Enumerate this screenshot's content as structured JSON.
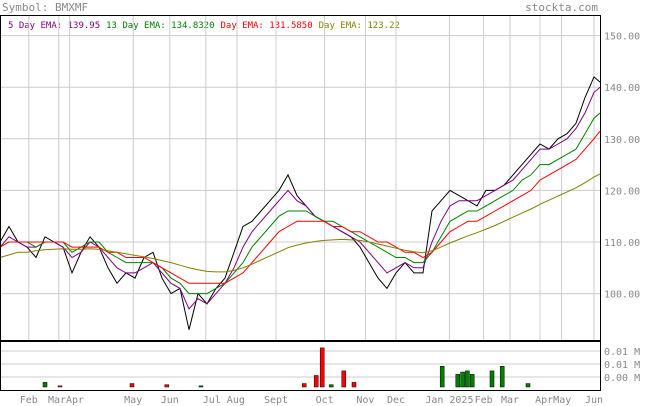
{
  "header": {
    "symbol_label": "Symbol: BMXMF",
    "site": "stockta.com"
  },
  "chart_data": {
    "type": "line",
    "legend": [
      {
        "name": "5 Day EMA: 139.95",
        "color": "#800080"
      },
      {
        "name": "13 Day EMA: 134.8320",
        "color": "#008000"
      },
      {
        "name": "Day EMA: 131.5850",
        "color": "#ff0000"
      },
      {
        "name": "Day EMA: 123.22",
        "color": "#808000"
      }
    ],
    "ylim": [
      91,
      154
    ],
    "y_ticks": [
      100,
      110,
      120,
      130,
      140,
      150
    ],
    "y_tick_labels": [
      "100.00",
      "110.00",
      "120.00",
      "130.00",
      "140.00",
      "150.00"
    ],
    "x_labels": [
      {
        "label": "Feb",
        "t": 0.048
      },
      {
        "label": "MarApr",
        "t": 0.11
      },
      {
        "label": "May",
        "t": 0.222
      },
      {
        "label": "Jun",
        "t": 0.283
      },
      {
        "label": "Jul Aug",
        "t": 0.373
      },
      {
        "label": "Sept",
        "t": 0.46
      },
      {
        "label": "Oct",
        "t": 0.541
      },
      {
        "label": "Nov",
        "t": 0.609
      },
      {
        "label": "Dec",
        "t": 0.66
      },
      {
        "label": "Jan 2025",
        "t": 0.749
      },
      {
        "label": "Feb",
        "t": 0.806
      },
      {
        "label": "Mar",
        "t": 0.85
      },
      {
        "label": "AprMay",
        "t": 0.922
      },
      {
        "label": "Jun",
        "t": 0.99
      }
    ],
    "vgrid_t": [
      0.048,
      0.098,
      0.116,
      0.222,
      0.283,
      0.343,
      0.395,
      0.46,
      0.541,
      0.609,
      0.66,
      0.749,
      0.806,
      0.85,
      0.9,
      0.936,
      0.99
    ],
    "series": [
      {
        "color": "#000000",
        "x": [
          0,
          0.015,
          0.03,
          0.045,
          0.06,
          0.075,
          0.09,
          0.105,
          0.12,
          0.135,
          0.15,
          0.165,
          0.18,
          0.195,
          0.21,
          0.225,
          0.24,
          0.255,
          0.27,
          0.285,
          0.3,
          0.315,
          0.33,
          0.345,
          0.36,
          0.375,
          0.39,
          0.405,
          0.42,
          0.435,
          0.45,
          0.465,
          0.48,
          0.495,
          0.51,
          0.525,
          0.54,
          0.555,
          0.57,
          0.585,
          0.6,
          0.615,
          0.63,
          0.645,
          0.66,
          0.675,
          0.69,
          0.705,
          0.72,
          0.735,
          0.75,
          0.765,
          0.78,
          0.795,
          0.81,
          0.825,
          0.84,
          0.855,
          0.87,
          0.885,
          0.9,
          0.915,
          0.93,
          0.945,
          0.96,
          0.975,
          0.99,
          1.0
        ],
        "y": [
          110,
          113,
          110,
          109,
          107,
          111,
          110,
          109,
          104,
          108,
          111,
          109,
          105,
          102,
          104,
          103,
          107,
          108,
          103,
          100,
          101,
          93,
          100,
          98,
          101,
          103,
          108,
          113,
          114,
          116,
          118,
          120,
          123,
          119,
          117,
          115,
          114,
          113,
          112,
          111,
          109,
          106,
          103,
          101,
          104,
          106,
          104,
          104,
          116,
          118,
          120,
          119,
          118,
          117,
          120,
          120,
          121,
          123,
          125,
          127,
          129,
          128,
          130,
          131,
          133,
          138,
          142,
          141
        ]
      },
      {
        "color": "#800080",
        "x": [
          0,
          0.015,
          0.03,
          0.045,
          0.06,
          0.075,
          0.09,
          0.105,
          0.12,
          0.135,
          0.15,
          0.165,
          0.18,
          0.195,
          0.21,
          0.225,
          0.24,
          0.255,
          0.27,
          0.285,
          0.3,
          0.315,
          0.33,
          0.345,
          0.36,
          0.375,
          0.39,
          0.405,
          0.42,
          0.435,
          0.45,
          0.465,
          0.48,
          0.495,
          0.51,
          0.525,
          0.54,
          0.555,
          0.57,
          0.585,
          0.6,
          0.615,
          0.63,
          0.645,
          0.66,
          0.675,
          0.69,
          0.705,
          0.72,
          0.735,
          0.75,
          0.765,
          0.78,
          0.795,
          0.81,
          0.825,
          0.84,
          0.855,
          0.87,
          0.885,
          0.9,
          0.915,
          0.93,
          0.945,
          0.96,
          0.975,
          0.99,
          1.0
        ],
        "y": [
          109,
          111,
          110,
          109,
          109,
          110,
          110,
          109,
          107,
          108,
          110,
          109,
          107,
          105,
          104,
          104,
          105,
          106,
          104,
          102,
          101,
          97,
          99,
          98,
          100,
          102,
          105,
          109,
          112,
          114,
          116,
          118,
          120,
          118,
          117,
          115,
          114,
          113,
          112,
          111,
          110,
          108,
          106,
          104,
          105,
          106,
          105,
          105,
          110,
          114,
          117,
          118,
          118,
          118,
          119,
          120,
          121,
          122,
          124,
          126,
          128,
          128,
          129,
          130,
          132,
          135,
          139,
          140
        ]
      },
      {
        "color": "#008000",
        "x": [
          0,
          0.015,
          0.03,
          0.045,
          0.06,
          0.075,
          0.09,
          0.105,
          0.12,
          0.135,
          0.15,
          0.165,
          0.18,
          0.195,
          0.21,
          0.225,
          0.24,
          0.255,
          0.27,
          0.285,
          0.3,
          0.315,
          0.33,
          0.345,
          0.36,
          0.375,
          0.39,
          0.405,
          0.42,
          0.435,
          0.45,
          0.465,
          0.48,
          0.495,
          0.51,
          0.525,
          0.54,
          0.555,
          0.57,
          0.585,
          0.6,
          0.615,
          0.63,
          0.645,
          0.66,
          0.675,
          0.69,
          0.705,
          0.72,
          0.735,
          0.75,
          0.765,
          0.78,
          0.795,
          0.81,
          0.825,
          0.84,
          0.855,
          0.87,
          0.885,
          0.9,
          0.915,
          0.93,
          0.945,
          0.96,
          0.975,
          0.99,
          1.0
        ],
        "y": [
          109,
          110,
          110,
          110,
          109,
          110,
          110,
          110,
          108,
          109,
          110,
          110,
          108,
          107,
          106,
          106,
          106,
          106,
          105,
          103,
          102,
          100,
          100,
          100,
          101,
          102,
          104,
          106,
          109,
          111,
          113,
          115,
          116,
          116,
          116,
          115,
          114,
          114,
          113,
          112,
          111,
          110,
          109,
          108,
          107,
          107,
          106,
          106,
          108,
          111,
          114,
          115,
          116,
          116,
          117,
          118,
          119,
          120,
          122,
          123,
          125,
          125,
          126,
          127,
          128,
          131,
          134,
          135
        ]
      },
      {
        "color": "#ff0000",
        "x": [
          0,
          0.015,
          0.03,
          0.045,
          0.06,
          0.075,
          0.09,
          0.105,
          0.12,
          0.135,
          0.15,
          0.165,
          0.18,
          0.195,
          0.21,
          0.225,
          0.24,
          0.255,
          0.27,
          0.285,
          0.3,
          0.315,
          0.33,
          0.345,
          0.36,
          0.375,
          0.39,
          0.405,
          0.42,
          0.435,
          0.45,
          0.465,
          0.48,
          0.495,
          0.51,
          0.525,
          0.54,
          0.555,
          0.57,
          0.585,
          0.6,
          0.615,
          0.63,
          0.645,
          0.66,
          0.675,
          0.69,
          0.705,
          0.72,
          0.735,
          0.75,
          0.765,
          0.78,
          0.795,
          0.81,
          0.825,
          0.84,
          0.855,
          0.87,
          0.885,
          0.9,
          0.915,
          0.93,
          0.945,
          0.96,
          0.975,
          0.99,
          1.0
        ],
        "y": [
          109,
          110,
          110,
          110,
          110,
          110,
          110,
          110,
          109,
          109,
          109,
          109,
          108,
          108,
          107,
          107,
          107,
          106,
          105,
          104,
          103,
          102,
          102,
          102,
          102,
          102,
          103,
          104,
          106,
          108,
          110,
          112,
          113,
          114,
          114,
          114,
          114,
          113,
          113,
          112,
          112,
          111,
          110,
          110,
          109,
          108,
          108,
          107,
          108,
          110,
          112,
          113,
          114,
          114,
          115,
          116,
          117,
          118,
          119,
          120,
          122,
          123,
          124,
          125,
          126,
          128,
          130,
          131.5
        ]
      },
      {
        "color": "#808000",
        "x": [
          0,
          0.015,
          0.03,
          0.045,
          0.06,
          0.075,
          0.09,
          0.105,
          0.12,
          0.135,
          0.15,
          0.165,
          0.18,
          0.195,
          0.21,
          0.225,
          0.24,
          0.255,
          0.27,
          0.285,
          0.3,
          0.315,
          0.33,
          0.345,
          0.36,
          0.375,
          0.39,
          0.405,
          0.42,
          0.435,
          0.45,
          0.465,
          0.48,
          0.495,
          0.51,
          0.525,
          0.54,
          0.555,
          0.57,
          0.585,
          0.6,
          0.615,
          0.63,
          0.645,
          0.66,
          0.675,
          0.69,
          0.705,
          0.72,
          0.735,
          0.75,
          0.765,
          0.78,
          0.795,
          0.81,
          0.825,
          0.84,
          0.855,
          0.87,
          0.885,
          0.9,
          0.915,
          0.93,
          0.945,
          0.96,
          0.975,
          0.99,
          1.0
        ],
        "y": [
          107,
          107.5,
          108,
          108,
          108.3,
          108.5,
          108.6,
          108.7,
          108.6,
          108.6,
          108.7,
          108.6,
          108.3,
          108,
          107.7,
          107.4,
          107.1,
          106.8,
          106.4,
          106,
          105.5,
          105,
          104.6,
          104.3,
          104.2,
          104.2,
          104.5,
          105,
          105.7,
          106.5,
          107.3,
          108.1,
          108.9,
          109.4,
          109.8,
          110.1,
          110.3,
          110.4,
          110.5,
          110.4,
          110.3,
          110,
          109.6,
          109.2,
          108.8,
          108.4,
          108.1,
          107.9,
          108.3,
          109,
          109.8,
          110.5,
          111.2,
          111.8,
          112.5,
          113.2,
          114,
          114.8,
          115.6,
          116.4,
          117.3,
          118.1,
          118.9,
          119.7,
          120.5,
          121.5,
          122.6,
          123.2
        ]
      }
    ],
    "volume": {
      "tick_labels": [
        "0.01 M",
        "0.01 M",
        "0.00 M"
      ],
      "ymax": 0.04,
      "bars": [
        {
          "x": 0.075,
          "value": 0.004,
          "color": "#008000"
        },
        {
          "x": 0.1,
          "value": 0.001,
          "color": "#ff0000"
        },
        {
          "x": 0.22,
          "value": 0.003,
          "color": "#ff0000"
        },
        {
          "x": 0.278,
          "value": 0.002,
          "color": "#ff0000"
        },
        {
          "x": 0.335,
          "value": 0.001,
          "color": "#008000"
        },
        {
          "x": 0.507,
          "value": 0.003,
          "color": "#ff0000"
        },
        {
          "x": 0.527,
          "value": 0.01,
          "color": "#ff0000"
        },
        {
          "x": 0.537,
          "value": 0.034,
          "color": "#ff0000"
        },
        {
          "x": 0.552,
          "value": 0.002,
          "color": "#008000"
        },
        {
          "x": 0.573,
          "value": 0.014,
          "color": "#ff0000"
        },
        {
          "x": 0.59,
          "value": 0.004,
          "color": "#ff0000"
        },
        {
          "x": 0.737,
          "value": 0.018,
          "color": "#008000"
        },
        {
          "x": 0.763,
          "value": 0.011,
          "color": "#008000"
        },
        {
          "x": 0.771,
          "value": 0.013,
          "color": "#008000"
        },
        {
          "x": 0.779,
          "value": 0.014,
          "color": "#008000"
        },
        {
          "x": 0.787,
          "value": 0.011,
          "color": "#008000"
        },
        {
          "x": 0.82,
          "value": 0.014,
          "color": "#008000"
        },
        {
          "x": 0.837,
          "value": 0.018,
          "color": "#008000"
        },
        {
          "x": 0.88,
          "value": 0.003,
          "color": "#008000"
        }
      ]
    }
  }
}
